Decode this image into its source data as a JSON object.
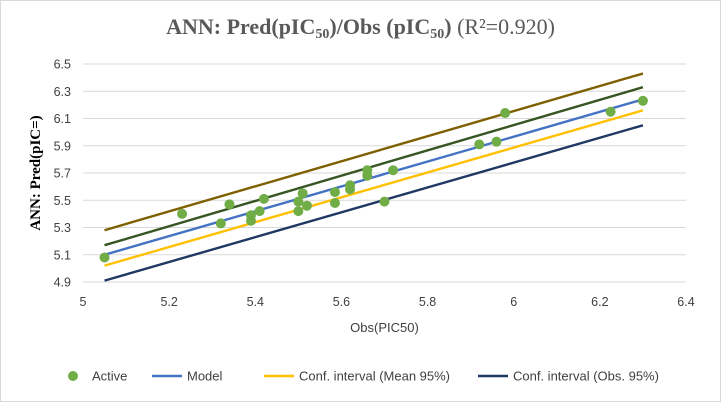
{
  "chart_data": {
    "type": "scatter",
    "title": {
      "prefix": "ANN: Pred(pIC",
      "sub1": "50",
      "mid": ")/Obs (pIC",
      "sub2": "50",
      "close": ")",
      "suffix": " (R²=0.920)"
    },
    "xlabel": "Obs(PIC50)",
    "ylabel": "ANN: Pred(pIC=)",
    "xlim": [
      5,
      6.4
    ],
    "ylim": [
      4.9,
      6.5
    ],
    "xticks": [
      "5",
      "5.2",
      "5.4",
      "5.6",
      "5.8",
      "6",
      "6.2",
      "6.4"
    ],
    "yticks": [
      "4.9",
      "5.1",
      "5.3",
      "5.5",
      "5.7",
      "5.9",
      "6.1",
      "6.3",
      "6.5"
    ],
    "legend_position": "bottom",
    "series": [
      {
        "name": "Active",
        "kind": "points",
        "color": "#70ad47",
        "x": [
          5.05,
          5.23,
          5.32,
          5.34,
          5.39,
          5.39,
          5.41,
          5.42,
          5.5,
          5.5,
          5.51,
          5.52,
          5.585,
          5.585,
          5.62,
          5.62,
          5.66,
          5.66,
          5.7,
          5.72,
          5.92,
          5.96,
          5.98,
          6.225,
          6.3
        ],
        "y": [
          5.08,
          5.4,
          5.33,
          5.47,
          5.39,
          5.35,
          5.42,
          5.51,
          5.49,
          5.42,
          5.55,
          5.46,
          5.56,
          5.48,
          5.61,
          5.58,
          5.72,
          5.68,
          5.49,
          5.72,
          5.91,
          5.93,
          6.14,
          6.15,
          6.23
        ]
      },
      {
        "name": "Model",
        "kind": "line",
        "color": "#4472c4",
        "x": [
          5.05,
          6.3
        ],
        "y": [
          5.1,
          6.24
        ]
      },
      {
        "name": "Conf. interval (Mean 95%)",
        "kind": "line",
        "color": "#ffc000",
        "x": [
          5.05,
          6.3
        ],
        "y": [
          5.02,
          6.16
        ]
      },
      {
        "name": "Conf. interval (Obs. 95%)",
        "kind": "line",
        "color": "#1f3864",
        "x": [
          5.05,
          6.3
        ],
        "y": [
          4.91,
          6.05
        ]
      },
      {
        "name": "",
        "kind": "line",
        "legend": false,
        "color": "#375623",
        "x": [
          5.05,
          6.3
        ],
        "y": [
          5.17,
          6.33
        ]
      },
      {
        "name": "",
        "kind": "line",
        "legend": false,
        "color": "#7f6000",
        "x": [
          5.05,
          6.3
        ],
        "y": [
          5.28,
          6.43
        ]
      }
    ]
  }
}
